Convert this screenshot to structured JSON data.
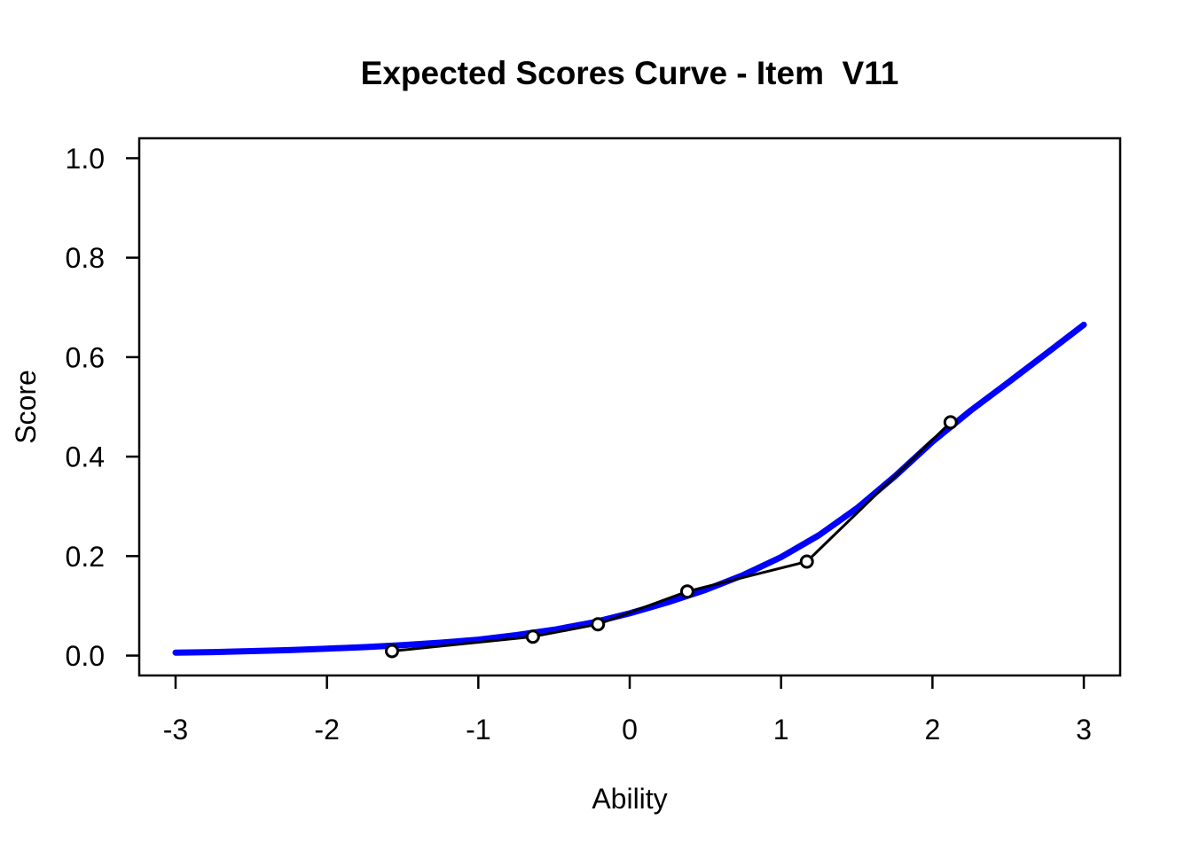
{
  "colors": {
    "background": "#ffffff",
    "model_curve": "#0000ff",
    "observed_series": "#000000",
    "axis": "#000000"
  },
  "chart_data": {
    "type": "line",
    "title": "Expected Scores Curve - Item  V11",
    "xlabel": "Ability",
    "ylabel": "Score",
    "xlim": [
      -3.24,
      3.24
    ],
    "ylim": [
      -0.04,
      1.04
    ],
    "x_ticks": [
      -3,
      -2,
      -1,
      0,
      1,
      2,
      3
    ],
    "x_tick_labels": [
      "-3",
      "-2",
      "-1",
      "0",
      "1",
      "2",
      "3"
    ],
    "y_ticks": [
      0.0,
      0.2,
      0.4,
      0.6,
      0.8,
      1.0
    ],
    "y_tick_labels": [
      "0.0",
      "0.2",
      "0.4",
      "0.6",
      "0.8",
      "1.0"
    ],
    "grid": false,
    "legend": "none",
    "box": true,
    "series": [
      {
        "name": "model-expected-score-curve",
        "type": "line",
        "color": "#0000ff",
        "line_width": 7,
        "marker": "none",
        "x": [
          -3,
          -2.75,
          -2.5,
          -2.25,
          -2,
          -1.75,
          -1.5,
          -1.25,
          -1,
          -0.75,
          -0.5,
          -0.25,
          0,
          0.25,
          0.5,
          0.75,
          1,
          1.25,
          1.5,
          1.75,
          2,
          2.25,
          2.5,
          2.75,
          3
        ],
        "y": [
          0.006,
          0.007,
          0.009,
          0.011,
          0.014,
          0.017,
          0.021,
          0.026,
          0.032,
          0.041,
          0.052,
          0.066,
          0.085,
          0.107,
          0.132,
          0.162,
          0.198,
          0.242,
          0.296,
          0.36,
          0.43,
          0.492,
          0.549,
          0.607,
          0.665
        ]
      },
      {
        "name": "observed-expected-scores",
        "type": "line",
        "color": "#000000",
        "line_width": 3,
        "marker": "open-circle",
        "x": [
          -1.57,
          -0.64,
          -0.21,
          0.38,
          1.17,
          2.12
        ],
        "y": [
          0.009,
          0.038,
          0.063,
          0.129,
          0.189,
          0.469
        ]
      }
    ]
  }
}
